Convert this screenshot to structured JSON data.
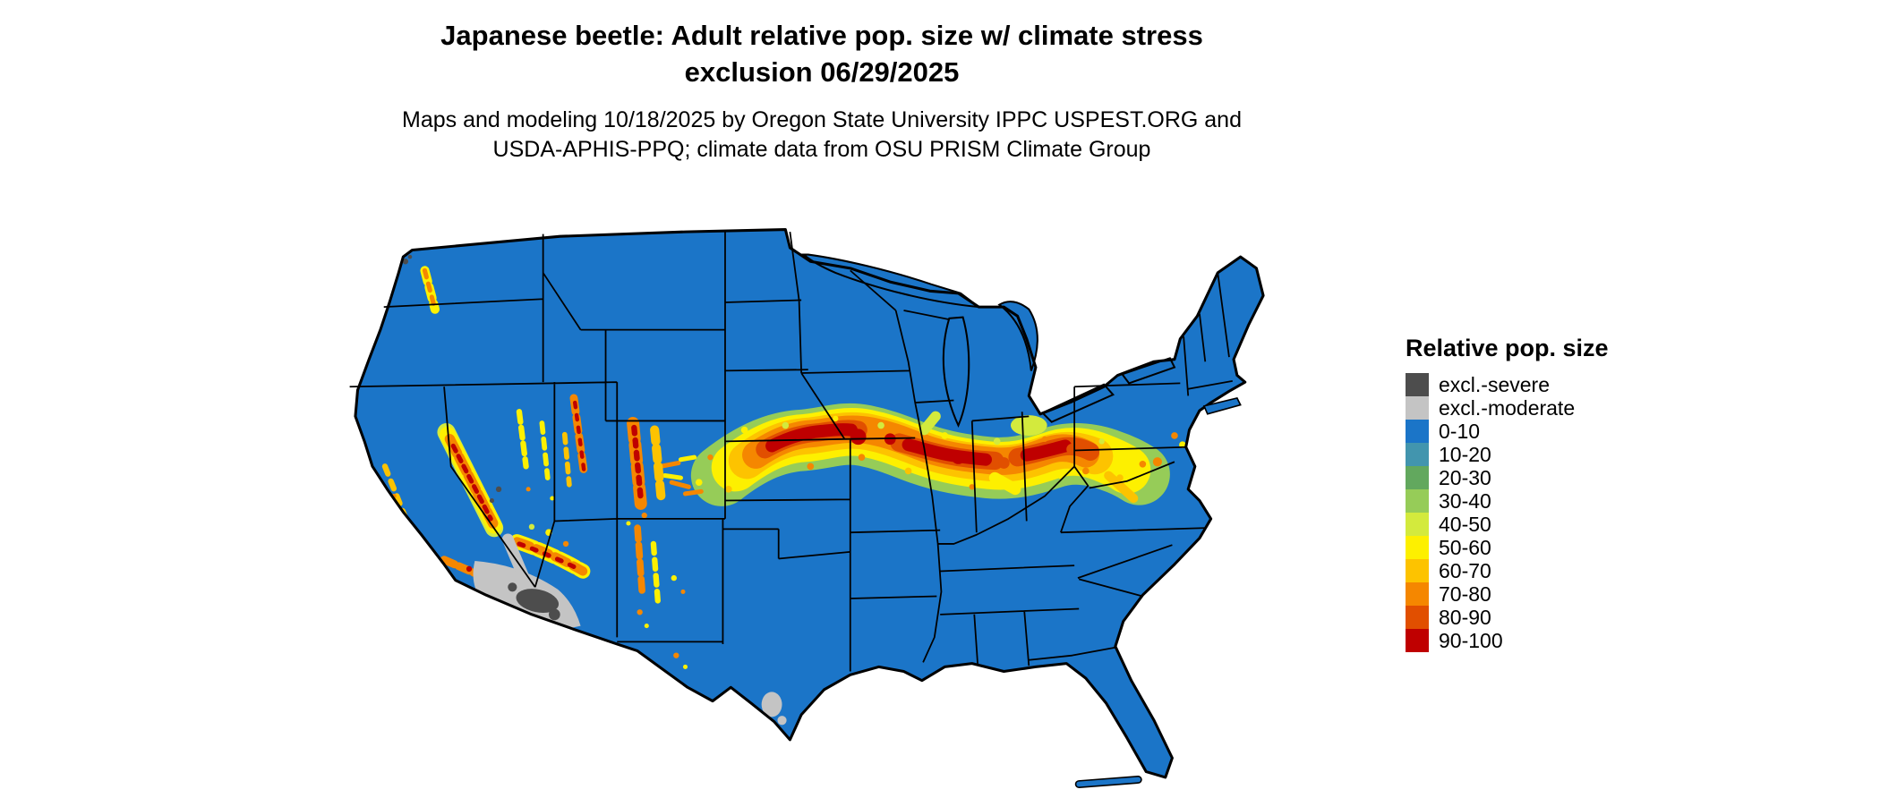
{
  "title": {
    "line1": "Japanese beetle: Adult relative pop. size w/ climate stress",
    "line2": "exclusion 06/29/2025"
  },
  "subtitle": {
    "line1": "Maps and modeling 10/18/2025 by Oregon State University IPPC USPEST.ORG and",
    "line2": "USDA-APHIS-PPQ; climate data from OSU PRISM Climate Group"
  },
  "legend": {
    "title": "Relative pop. size",
    "items": [
      {
        "label": "excl.-severe",
        "color": "#4d4d4d"
      },
      {
        "label": "excl.-moderate",
        "color": "#c4c4c4"
      },
      {
        "label": "0-10",
        "color": "#1b75c8"
      },
      {
        "label": "10-20",
        "color": "#4295ae"
      },
      {
        "label": "20-30",
        "color": "#62a85e"
      },
      {
        "label": "30-40",
        "color": "#96cc58"
      },
      {
        "label": "40-50",
        "color": "#d3ea3d"
      },
      {
        "label": "50-60",
        "color": "#fdf000"
      },
      {
        "label": "60-70",
        "color": "#fdc300"
      },
      {
        "label": "70-80",
        "color": "#f58700"
      },
      {
        "label": "80-90",
        "color": "#e14f00"
      },
      {
        "label": "90-100",
        "color": "#bf0000"
      }
    ]
  },
  "map": {
    "outline_color": "#000000",
    "background_color": "#ffffff"
  }
}
